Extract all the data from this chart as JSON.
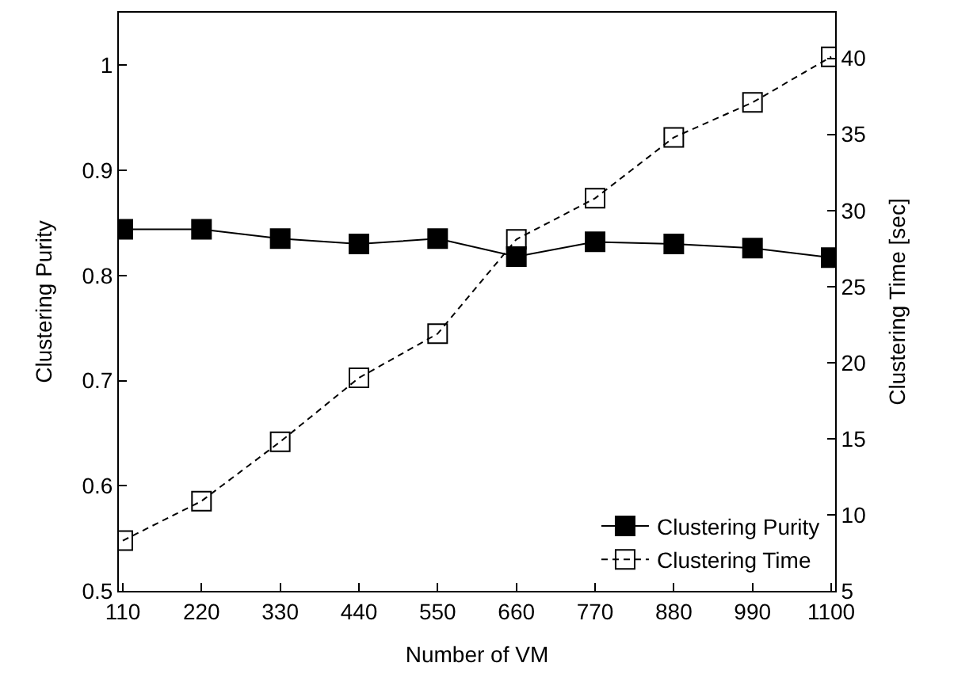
{
  "chart_data": {
    "type": "line",
    "xlabel": "Number of VM",
    "ylabel": "Clustering Purity",
    "y2label": "Clustering Time [sec]",
    "categories": [
      "110",
      "220",
      "330",
      "440",
      "550",
      "660",
      "770",
      "880",
      "990",
      "1100"
    ],
    "series": [
      {
        "name": "Clustering Purity",
        "color": "#000000",
        "values": [
          0.844,
          0.844,
          0.835,
          0.83,
          0.835,
          0.818,
          0.832,
          0.83,
          0.826,
          0.817
        ],
        "marker": "square",
        "line_style": "solid"
      },
      {
        "name": "Clustering Time",
        "color": "#000000",
        "axis": "y2",
        "values": [
          8.3,
          10.9,
          14.8,
          19.0,
          21.9,
          28.1,
          30.8,
          34.8,
          37.1,
          40.1
        ],
        "marker": "square",
        "line_style": "dashed"
      }
    ],
    "ylim": [
      0.5,
      1.05
    ],
    "yticks": [
      0.5,
      0.6,
      0.7,
      0.8,
      0.9,
      1
    ],
    "y2lim": [
      5,
      43
    ],
    "y2ticks": [
      5,
      10,
      15,
      20,
      25,
      30,
      35,
      40
    ],
    "legend": "bottom right"
  }
}
